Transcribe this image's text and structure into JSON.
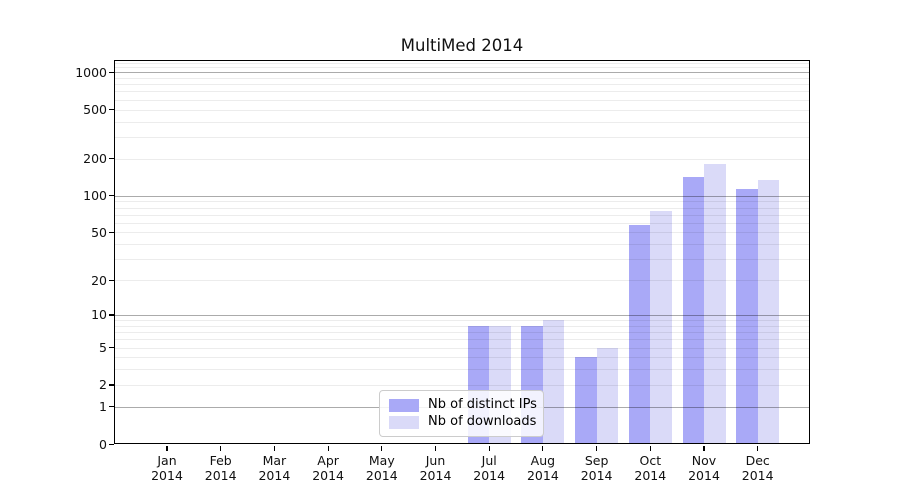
{
  "title": "MultiMed 2014",
  "chart_data": {
    "type": "bar",
    "title": "MultiMed 2014",
    "categories": [
      "Jan",
      "Feb",
      "Mar",
      "Apr",
      "May",
      "Jun",
      "Jul",
      "Aug",
      "Sep",
      "Oct",
      "Nov",
      "Dec"
    ],
    "category_year": "2014",
    "series": [
      {
        "name": "Nb of distinct IPs",
        "color": "#a9a9f7",
        "values": [
          0,
          0,
          0,
          0,
          0,
          0,
          8,
          8,
          4,
          58,
          143,
          113
        ]
      },
      {
        "name": "Nb of downloads",
        "color": "#dadaf8",
        "values": [
          0,
          0,
          0,
          0,
          0,
          0,
          8,
          9,
          5,
          75,
          180,
          135
        ]
      }
    ],
    "yscale": "log1p",
    "ylim": [
      0,
      1259
    ],
    "yticks": [
      0,
      1,
      2,
      5,
      10,
      20,
      50,
      100,
      200,
      500,
      1000
    ],
    "ytick_labels": [
      "0",
      "1",
      "2",
      "5",
      "10",
      "20",
      "50",
      "100",
      "200",
      "500",
      "1000"
    ],
    "minor_gridlines": [
      2,
      3,
      4,
      5,
      6,
      7,
      8,
      9,
      20,
      30,
      40,
      50,
      60,
      70,
      80,
      90,
      200,
      300,
      400,
      500,
      600,
      700,
      800,
      900,
      1100,
      1200
    ],
    "major_gridlines": [
      1,
      10,
      100,
      1000
    ],
    "grid": true,
    "legend_position": "inside-lower-center",
    "frame_color": "#000000",
    "background_color": "#ffffff"
  }
}
